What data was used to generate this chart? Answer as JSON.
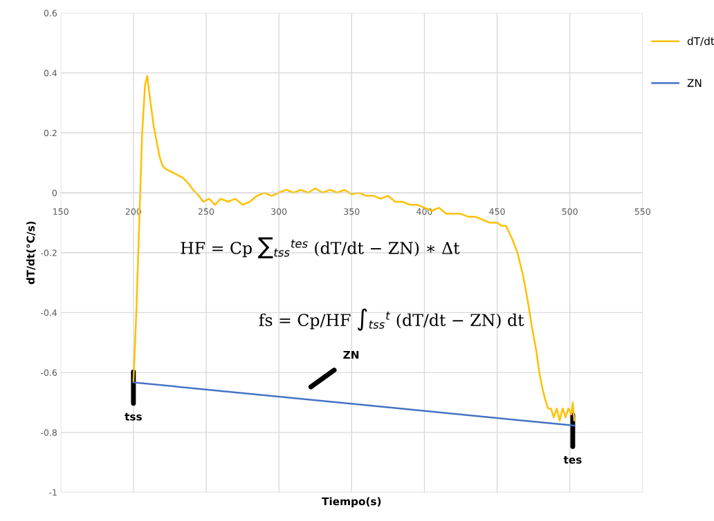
{
  "chart_data": {
    "type": "line",
    "xlabel": "Tiempo(s)",
    "ylabel": "dT/dt(°C/s)",
    "xlim": [
      150,
      550
    ],
    "xticks": [
      150,
      200,
      250,
      300,
      350,
      400,
      450,
      500,
      550
    ],
    "ylim": [
      -1,
      0.6
    ],
    "yticks": [
      -1,
      -0.8,
      -0.6,
      -0.4,
      -0.2,
      0,
      0.2,
      0.4,
      0.6
    ],
    "grid": true,
    "legend": "top right",
    "marker": "none",
    "line_style": "solid",
    "series": [
      {
        "name": "dT/dt",
        "color": "#ffc000",
        "x": [
          200,
          202,
          204,
          206,
          208,
          209.5,
          211,
          214,
          218,
          220,
          222,
          226,
          230,
          234,
          238,
          241,
          245,
          248,
          252,
          256,
          260,
          265,
          270,
          275,
          280,
          285,
          290,
          295,
          300,
          305,
          310,
          315,
          320,
          325,
          330,
          335,
          340,
          345,
          350,
          355,
          360,
          365,
          370,
          375,
          380,
          385,
          390,
          395,
          400,
          405,
          410,
          415,
          420,
          425,
          430,
          435,
          440,
          445,
          450,
          453,
          456,
          460,
          464,
          468,
          471,
          474,
          477,
          479,
          481,
          483,
          485,
          487,
          489,
          491,
          493,
          495,
          497,
          499,
          501,
          502,
          503
        ],
        "values": [
          -0.63,
          -0.4,
          -0.1,
          0.2,
          0.36,
          0.39,
          0.33,
          0.22,
          0.12,
          0.09,
          0.08,
          0.07,
          0.06,
          0.05,
          0.03,
          0.01,
          -0.01,
          -0.03,
          -0.02,
          -0.04,
          -0.02,
          -0.03,
          -0.02,
          -0.04,
          -0.03,
          -0.01,
          0.0,
          -0.01,
          0.0,
          0.01,
          0.0,
          0.01,
          0.0,
          0.015,
          0.0,
          0.01,
          0.0,
          0.01,
          -0.005,
          0.0,
          -0.01,
          -0.01,
          -0.02,
          -0.01,
          -0.03,
          -0.03,
          -0.04,
          -0.04,
          -0.05,
          -0.06,
          -0.05,
          -0.07,
          -0.07,
          -0.07,
          -0.08,
          -0.08,
          -0.09,
          -0.1,
          -0.1,
          -0.11,
          -0.11,
          -0.15,
          -0.2,
          -0.28,
          -0.36,
          -0.45,
          -0.53,
          -0.6,
          -0.65,
          -0.69,
          -0.72,
          -0.72,
          -0.75,
          -0.72,
          -0.76,
          -0.72,
          -0.75,
          -0.72,
          -0.74,
          -0.7,
          -0.76
        ]
      },
      {
        "name": "ZN",
        "color": "#4472c4",
        "x": [
          200,
          503
        ],
        "values": [
          -0.633,
          -0.777
        ]
      }
    ],
    "annotations": [
      {
        "text": "tss",
        "x": 200,
        "y": -0.633
      },
      {
        "text": "tes",
        "x": 502,
        "y": -0.777
      },
      "ZN",
      "HF = Cp ∑$_{tss}$$^{tes}$ (dT/dt − ZN) ∗ Δt",
      "fs = Cp/HF ∫$_{tss}$$^{t}$ (dT/dt − ZN) dt"
    ]
  }
}
